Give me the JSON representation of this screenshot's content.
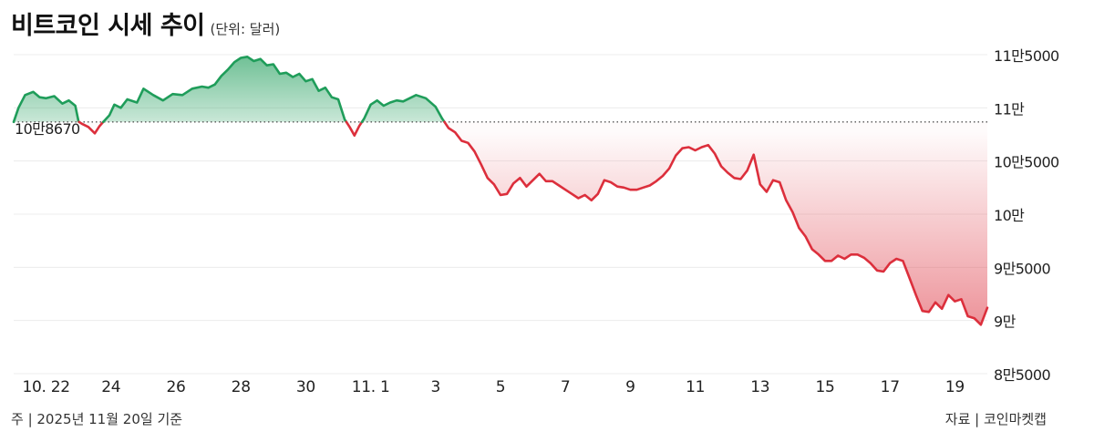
{
  "title": "비트코인 시세 추이",
  "unit": "(단위: 달러)",
  "footnote": "주 | 2025년 11월 20일 기준",
  "source": "자료 | 코인마켓캡",
  "colors": {
    "up": "#1f9d5a",
    "down": "#dc2f3c"
  },
  "chart_data": {
    "type": "area",
    "title": "비트코인 시세 추이",
    "unit": "(단위: 달러)",
    "baseline": {
      "value": 108670,
      "label": "10만8670",
      "style": "dotted"
    },
    "ylim": [
      85000,
      115000
    ],
    "yticks": [
      {
        "value": 115000,
        "label": "11만5000"
      },
      {
        "value": 110000,
        "label": "11만"
      },
      {
        "value": 105000,
        "label": "10만5000"
      },
      {
        "value": 100000,
        "label": "10만"
      },
      {
        "value": 95000,
        "label": "9만5000"
      },
      {
        "value": 90000,
        "label": "9만"
      },
      {
        "value": 85000,
        "label": "8만5000"
      }
    ],
    "xlim": [
      0,
      30
    ],
    "xticks": [
      {
        "value": 1,
        "label": "10. 22"
      },
      {
        "value": 3,
        "label": "24"
      },
      {
        "value": 5,
        "label": "26"
      },
      {
        "value": 7,
        "label": "28"
      },
      {
        "value": 9,
        "label": "30"
      },
      {
        "value": 11,
        "label": "11. 1"
      },
      {
        "value": 13,
        "label": "3"
      },
      {
        "value": 15,
        "label": "5"
      },
      {
        "value": 17,
        "label": "7"
      },
      {
        "value": 19,
        "label": "9"
      },
      {
        "value": 21,
        "label": "11"
      },
      {
        "value": 23,
        "label": "13"
      },
      {
        "value": 25,
        "label": "15"
      },
      {
        "value": 27,
        "label": "17"
      },
      {
        "value": 29,
        "label": "19"
      }
    ],
    "points": [
      [
        0.0,
        108670
      ],
      [
        0.15,
        110000
      ],
      [
        0.35,
        111200
      ],
      [
        0.6,
        111500
      ],
      [
        0.8,
        111000
      ],
      [
        1.0,
        110900
      ],
      [
        1.25,
        111100
      ],
      [
        1.5,
        110400
      ],
      [
        1.7,
        110700
      ],
      [
        1.9,
        110200
      ],
      [
        2.0,
        108700
      ],
      [
        2.1,
        108500
      ],
      [
        2.3,
        108200
      ],
      [
        2.5,
        107600
      ],
      [
        2.65,
        108300
      ],
      [
        2.8,
        108800
      ],
      [
        2.95,
        109300
      ],
      [
        3.1,
        110300
      ],
      [
        3.3,
        110000
      ],
      [
        3.5,
        110800
      ],
      [
        3.8,
        110500
      ],
      [
        4.0,
        111800
      ],
      [
        4.3,
        111200
      ],
      [
        4.6,
        110700
      ],
      [
        4.9,
        111300
      ],
      [
        5.2,
        111200
      ],
      [
        5.5,
        111800
      ],
      [
        5.8,
        112000
      ],
      [
        6.0,
        111900
      ],
      [
        6.2,
        112200
      ],
      [
        6.4,
        113000
      ],
      [
        6.6,
        113600
      ],
      [
        6.8,
        114300
      ],
      [
        7.0,
        114700
      ],
      [
        7.2,
        114800
      ],
      [
        7.4,
        114400
      ],
      [
        7.6,
        114600
      ],
      [
        7.8,
        114000
      ],
      [
        8.0,
        114100
      ],
      [
        8.2,
        113200
      ],
      [
        8.4,
        113300
      ],
      [
        8.6,
        112900
      ],
      [
        8.8,
        113200
      ],
      [
        9.0,
        112500
      ],
      [
        9.2,
        112700
      ],
      [
        9.4,
        111600
      ],
      [
        9.6,
        111900
      ],
      [
        9.8,
        111000
      ],
      [
        10.0,
        110800
      ],
      [
        10.2,
        108900
      ],
      [
        10.35,
        108200
      ],
      [
        10.5,
        107400
      ],
      [
        10.65,
        108300
      ],
      [
        10.8,
        109000
      ],
      [
        11.0,
        110300
      ],
      [
        11.2,
        110700
      ],
      [
        11.4,
        110200
      ],
      [
        11.6,
        110500
      ],
      [
        11.8,
        110700
      ],
      [
        12.0,
        110600
      ],
      [
        12.2,
        110900
      ],
      [
        12.4,
        111200
      ],
      [
        12.7,
        110900
      ],
      [
        13.0,
        110100
      ],
      [
        13.2,
        109000
      ],
      [
        13.4,
        108100
      ],
      [
        13.6,
        107700
      ],
      [
        13.8,
        106900
      ],
      [
        14.0,
        106700
      ],
      [
        14.2,
        105900
      ],
      [
        14.4,
        104700
      ],
      [
        14.6,
        103400
      ],
      [
        14.8,
        102800
      ],
      [
        15.0,
        101800
      ],
      [
        15.2,
        101900
      ],
      [
        15.4,
        102900
      ],
      [
        15.6,
        103400
      ],
      [
        15.8,
        102600
      ],
      [
        16.0,
        103200
      ],
      [
        16.2,
        103800
      ],
      [
        16.4,
        103100
      ],
      [
        16.6,
        103100
      ],
      [
        16.8,
        102700
      ],
      [
        17.0,
        102300
      ],
      [
        17.2,
        101900
      ],
      [
        17.4,
        101500
      ],
      [
        17.6,
        101800
      ],
      [
        17.8,
        101300
      ],
      [
        18.0,
        101900
      ],
      [
        18.2,
        103200
      ],
      [
        18.4,
        103000
      ],
      [
        18.6,
        102600
      ],
      [
        18.8,
        102500
      ],
      [
        19.0,
        102300
      ],
      [
        19.2,
        102300
      ],
      [
        19.4,
        102500
      ],
      [
        19.6,
        102700
      ],
      [
        19.8,
        103100
      ],
      [
        20.0,
        103600
      ],
      [
        20.2,
        104300
      ],
      [
        20.4,
        105500
      ],
      [
        20.6,
        106200
      ],
      [
        20.8,
        106300
      ],
      [
        21.0,
        106000
      ],
      [
        21.2,
        106300
      ],
      [
        21.4,
        106500
      ],
      [
        21.6,
        105700
      ],
      [
        21.8,
        104500
      ],
      [
        22.0,
        103900
      ],
      [
        22.2,
        103400
      ],
      [
        22.4,
        103300
      ],
      [
        22.6,
        104100
      ],
      [
        22.8,
        105600
      ],
      [
        23.0,
        102800
      ],
      [
        23.2,
        102100
      ],
      [
        23.4,
        103200
      ],
      [
        23.6,
        103000
      ],
      [
        23.8,
        101300
      ],
      [
        24.0,
        100200
      ],
      [
        24.2,
        98700
      ],
      [
        24.4,
        97900
      ],
      [
        24.6,
        96700
      ],
      [
        24.8,
        96200
      ],
      [
        25.0,
        95600
      ],
      [
        25.2,
        95600
      ],
      [
        25.4,
        96100
      ],
      [
        25.6,
        95800
      ],
      [
        25.8,
        96200
      ],
      [
        26.0,
        96200
      ],
      [
        26.2,
        95900
      ],
      [
        26.4,
        95400
      ],
      [
        26.6,
        94700
      ],
      [
        26.8,
        94600
      ],
      [
        27.0,
        95400
      ],
      [
        27.2,
        95800
      ],
      [
        27.4,
        95600
      ],
      [
        27.6,
        94000
      ],
      [
        27.8,
        92400
      ],
      [
        28.0,
        90900
      ],
      [
        28.2,
        90800
      ],
      [
        28.4,
        91700
      ],
      [
        28.6,
        91100
      ],
      [
        28.8,
        92400
      ],
      [
        29.0,
        91800
      ],
      [
        29.2,
        92000
      ],
      [
        29.4,
        90400
      ],
      [
        29.6,
        90200
      ],
      [
        29.8,
        89600
      ],
      [
        30.0,
        91200
      ]
    ]
  }
}
